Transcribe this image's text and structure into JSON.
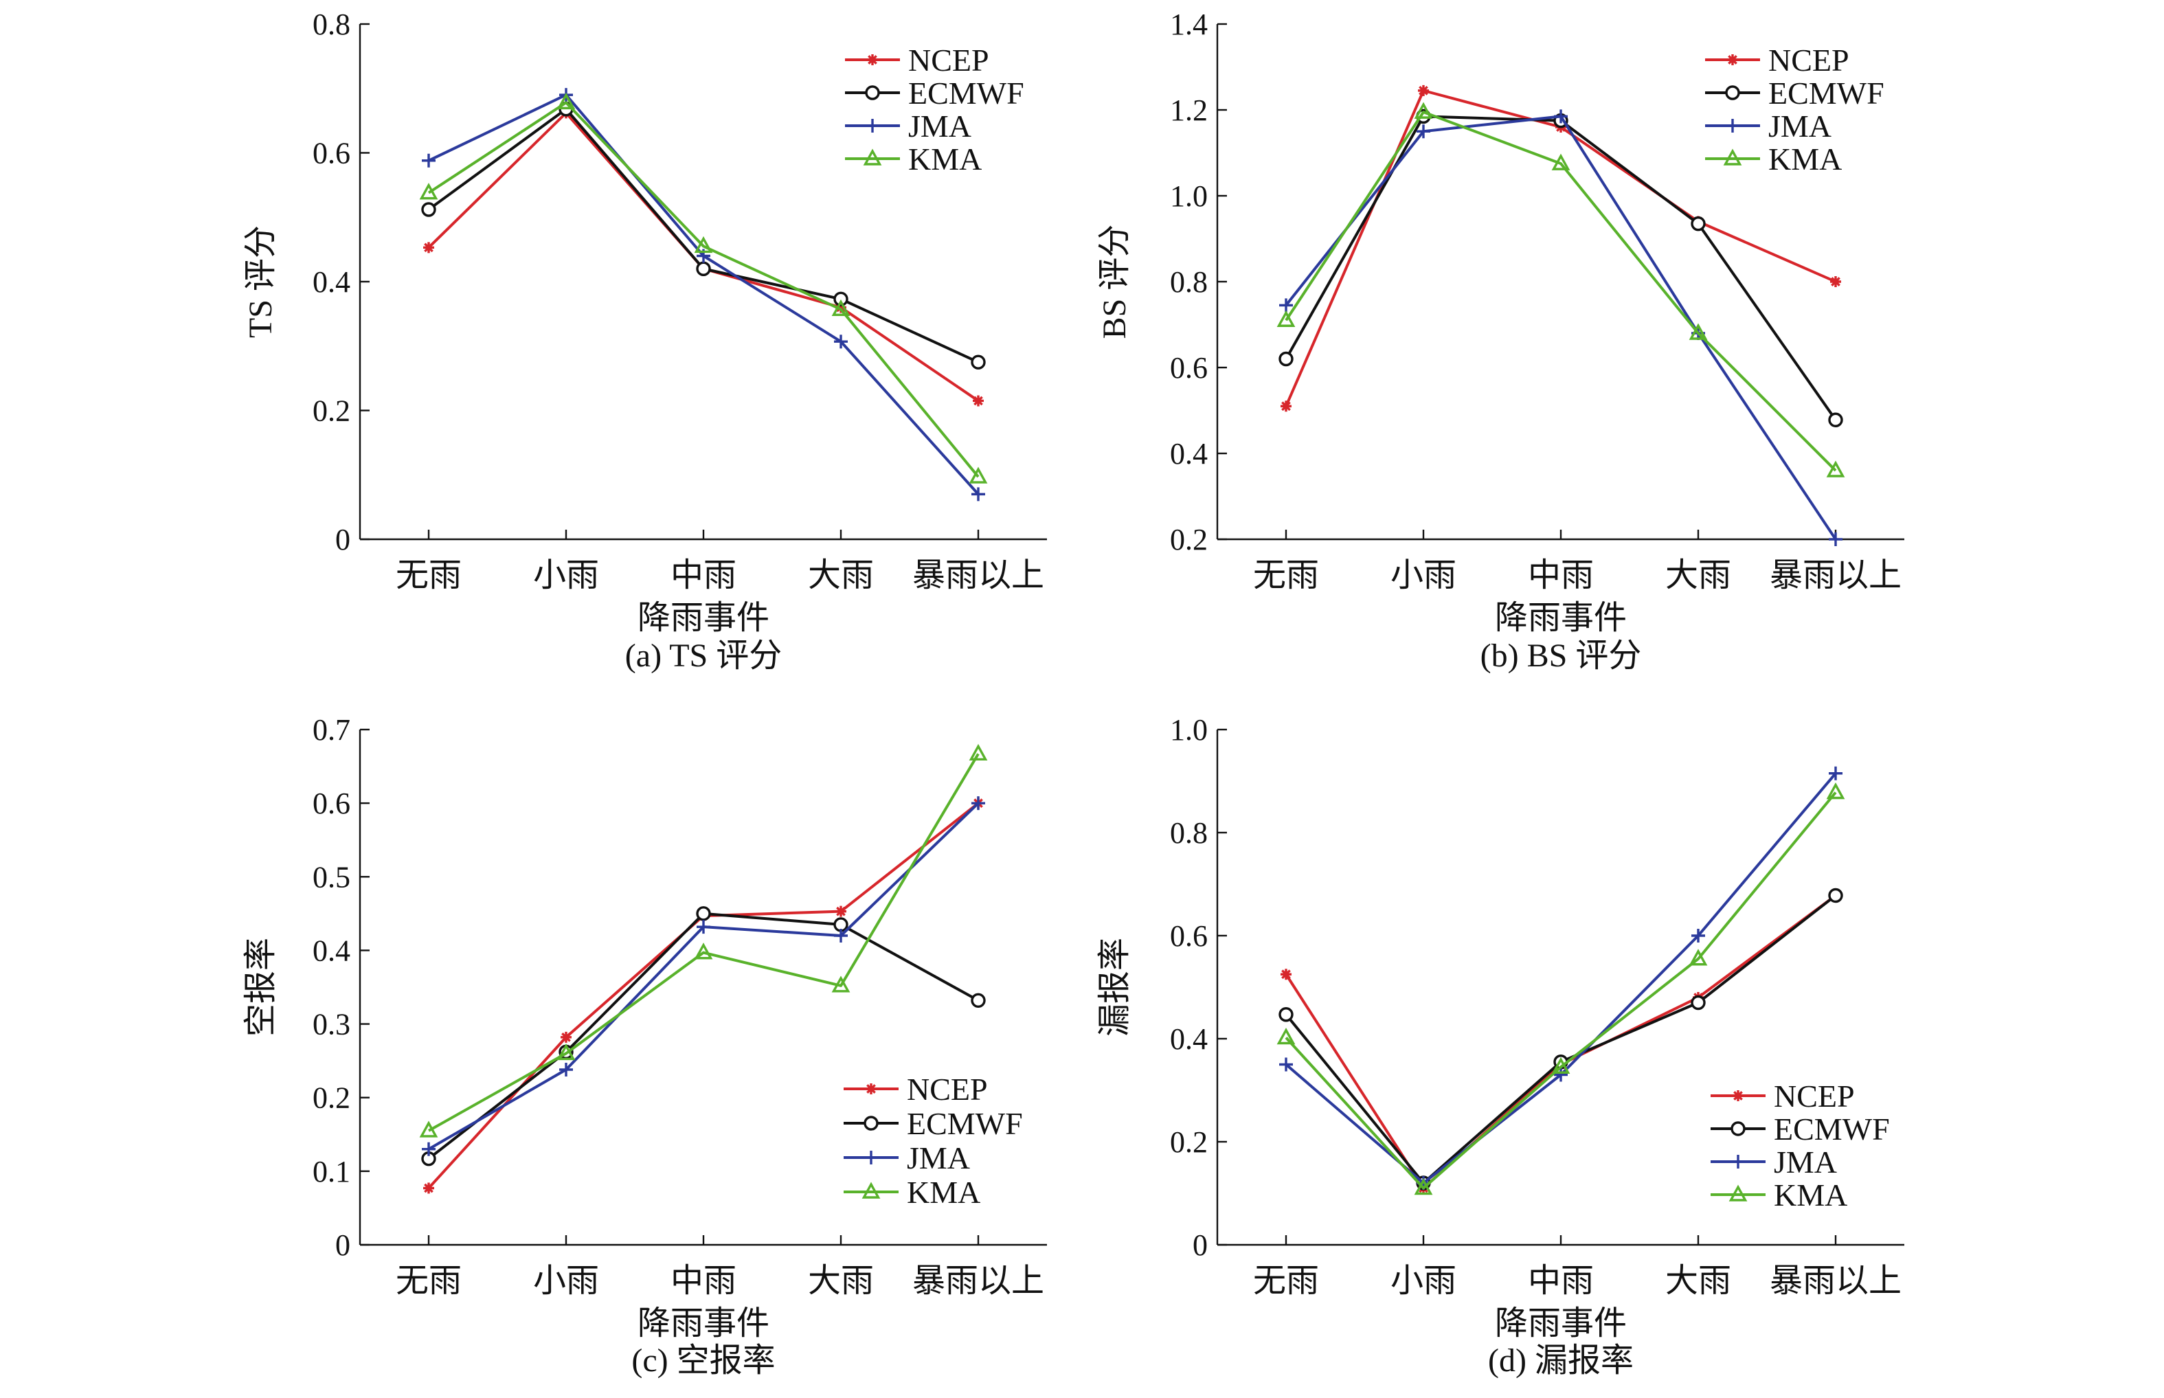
{
  "colors": {
    "NCEP": "#d7262b",
    "ECMWF": "#111111",
    "JMA": "#2b3a9c",
    "KMA": "#59b22b",
    "axis": "#111111"
  },
  "markers": {
    "NCEP": "asterisk",
    "ECMWF": "circle",
    "JMA": "plus",
    "KMA": "triangle"
  },
  "chart_data": [
    {
      "type": "line",
      "caption": "(a) TS 评分",
      "xlabel": "降雨事件",
      "ylabel": "TS 评分",
      "categories": [
        "无雨",
        "小雨",
        "中雨",
        "大雨",
        "暴雨以上"
      ],
      "ylim": [
        0,
        0.8
      ],
      "yticks": [
        0,
        0.2,
        0.4,
        0.6,
        0.8
      ],
      "ytick_labels": [
        "0",
        "0.2",
        "0.4",
        "0.6",
        "0.8"
      ],
      "legend": "top-right",
      "grid": false,
      "series": [
        {
          "name": "NCEP",
          "values": [
            0.453,
            0.662,
            0.42,
            0.36,
            0.215
          ]
        },
        {
          "name": "ECMWF",
          "values": [
            0.512,
            0.668,
            0.42,
            0.373,
            0.275
          ]
        },
        {
          "name": "JMA",
          "values": [
            0.588,
            0.69,
            0.44,
            0.307,
            0.07
          ]
        },
        {
          "name": "KMA",
          "values": [
            0.538,
            0.678,
            0.455,
            0.357,
            0.097
          ]
        }
      ]
    },
    {
      "type": "line",
      "caption": "(b) BS 评分",
      "xlabel": "降雨事件",
      "ylabel": "BS 评分",
      "categories": [
        "无雨",
        "小雨",
        "中雨",
        "大雨",
        "暴雨以上"
      ],
      "ylim": [
        0.2,
        1.4
      ],
      "yticks": [
        0.2,
        0.4,
        0.6,
        0.8,
        1.0,
        1.2,
        1.4
      ],
      "ytick_labels": [
        "0.2",
        "0.4",
        "0.6",
        "0.8",
        "1.0",
        "1.2",
        "1.4"
      ],
      "legend": "top-right",
      "grid": false,
      "series": [
        {
          "name": "NCEP",
          "values": [
            0.51,
            1.245,
            1.16,
            0.94,
            0.8
          ]
        },
        {
          "name": "ECMWF",
          "values": [
            0.62,
            1.185,
            1.175,
            0.935,
            0.478
          ]
        },
        {
          "name": "JMA",
          "values": [
            0.745,
            1.15,
            1.185,
            0.68,
            0.2
          ]
        },
        {
          "name": "KMA",
          "values": [
            0.71,
            1.195,
            1.075,
            0.68,
            0.36
          ]
        }
      ]
    },
    {
      "type": "line",
      "caption": "(c) 空报率",
      "xlabel": "降雨事件",
      "ylabel": "空报率",
      "categories": [
        "无雨",
        "小雨",
        "中雨",
        "大雨",
        "暴雨以上"
      ],
      "ylim": [
        0,
        0.7
      ],
      "yticks": [
        0,
        0.1,
        0.2,
        0.3,
        0.4,
        0.5,
        0.6,
        0.7
      ],
      "ytick_labels": [
        "0",
        "0.1",
        "0.2",
        "0.3",
        "0.4",
        "0.5",
        "0.6",
        "0.7"
      ],
      "legend": "bottom-right",
      "grid": false,
      "series": [
        {
          "name": "NCEP",
          "values": [
            0.077,
            0.282,
            0.447,
            0.453,
            0.6
          ]
        },
        {
          "name": "ECMWF",
          "values": [
            0.117,
            0.262,
            0.45,
            0.435,
            0.332
          ]
        },
        {
          "name": "JMA",
          "values": [
            0.13,
            0.238,
            0.432,
            0.42,
            0.6
          ]
        },
        {
          "name": "KMA",
          "values": [
            0.155,
            0.26,
            0.397,
            0.352,
            0.667
          ]
        }
      ]
    },
    {
      "type": "line",
      "caption": "(d) 漏报率",
      "xlabel": "降雨事件",
      "ylabel": "漏报率",
      "categories": [
        "无雨",
        "小雨",
        "中雨",
        "大雨",
        "暴雨以上"
      ],
      "ylim": [
        0,
        1.0
      ],
      "yticks": [
        0,
        0.2,
        0.4,
        0.6,
        0.8,
        1.0
      ],
      "ytick_labels": [
        "0",
        "0.2",
        "0.4",
        "0.6",
        "0.8",
        "1.0"
      ],
      "legend": "bottom-right",
      "grid": false,
      "series": [
        {
          "name": "NCEP",
          "values": [
            0.525,
            0.11,
            0.35,
            0.48,
            0.678
          ]
        },
        {
          "name": "ECMWF",
          "values": [
            0.447,
            0.12,
            0.355,
            0.47,
            0.678
          ]
        },
        {
          "name": "JMA",
          "values": [
            0.35,
            0.12,
            0.33,
            0.6,
            0.915
          ]
        },
        {
          "name": "KMA",
          "values": [
            0.402,
            0.11,
            0.345,
            0.555,
            0.878
          ]
        }
      ]
    }
  ]
}
